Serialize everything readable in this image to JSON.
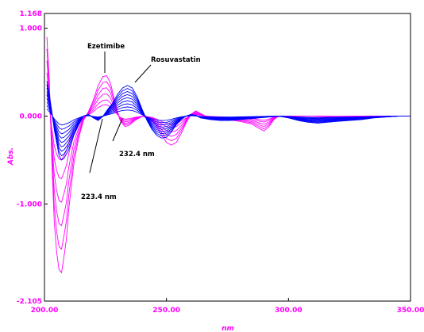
{
  "chart_data": {
    "type": "line",
    "xlabel": "nm",
    "ylabel": "Abs.",
    "xlim": [
      200.0,
      350.0
    ],
    "ylim": [
      -2.105,
      1.168
    ],
    "x_ticks": [
      "200.00",
      "250.00",
      "300.00",
      "350.00"
    ],
    "y_ticks": [
      {
        "value": 1.168,
        "label": "1.168"
      },
      {
        "value": 1.0,
        "label": "1.000"
      },
      {
        "value": 0.0,
        "label": "0.000"
      },
      {
        "value": -1.0,
        "label": "-1.000"
      },
      {
        "value": -2.105,
        "label": "-2.105"
      }
    ],
    "grid": false,
    "annotations": [
      {
        "text": "Ezetimibe",
        "x": 225.5,
        "y": 0.46
      },
      {
        "text": "Rosuvastatin",
        "x": 235.0,
        "y": 0.4
      },
      {
        "text": "232.4 nm",
        "x": 232.4,
        "y": 0.0
      },
      {
        "text": "223.4 nm",
        "x": 223.4,
        "y": 0.0
      }
    ],
    "series_groups": [
      {
        "color": "#ff00ff",
        "scales": [
          1.0,
          0.85,
          0.7,
          0.55,
          0.4,
          0.28
        ],
        "points": [
          [
            201,
            0.9
          ],
          [
            202,
            0.4
          ],
          [
            203,
            -0.5
          ],
          [
            204,
            -1.2
          ],
          [
            205,
            -1.55
          ],
          [
            206,
            -1.75
          ],
          [
            207,
            -1.78
          ],
          [
            208,
            -1.6
          ],
          [
            209,
            -1.4
          ],
          [
            210,
            -1.05
          ],
          [
            212,
            -0.55
          ],
          [
            214,
            -0.25
          ],
          [
            216,
            -0.05
          ],
          [
            218,
            0.05
          ],
          [
            220,
            0.18
          ],
          [
            222,
            0.35
          ],
          [
            224,
            0.45
          ],
          [
            225.5,
            0.46
          ],
          [
            227,
            0.38
          ],
          [
            229,
            0.15
          ],
          [
            231,
            -0.05
          ],
          [
            233,
            -0.12
          ],
          [
            235,
            -0.1
          ],
          [
            237,
            -0.05
          ],
          [
            239,
            -0.02
          ],
          [
            240,
            0.0
          ],
          [
            242,
            -0.02
          ],
          [
            244,
            -0.05
          ],
          [
            246,
            -0.12
          ],
          [
            248,
            -0.22
          ],
          [
            250,
            -0.3
          ],
          [
            252,
            -0.33
          ],
          [
            254,
            -0.3
          ],
          [
            256,
            -0.2
          ],
          [
            258,
            -0.08
          ],
          [
            260,
            0.02
          ],
          [
            262,
            0.06
          ],
          [
            264,
            0.03
          ],
          [
            266,
            0.0
          ],
          [
            270,
            -0.02
          ],
          [
            275,
            -0.04
          ],
          [
            280,
            -0.06
          ],
          [
            285,
            -0.09
          ],
          [
            288,
            -0.14
          ],
          [
            290,
            -0.17
          ],
          [
            292,
            -0.12
          ],
          [
            294,
            -0.04
          ],
          [
            296,
            0.0
          ],
          [
            300,
            0.0
          ],
          [
            310,
            0.0
          ],
          [
            320,
            -0.01
          ],
          [
            330,
            0.0
          ],
          [
            340,
            0.0
          ],
          [
            350,
            0.0
          ]
        ]
      },
      {
        "color": "#0000ff",
        "scales": [
          1.0,
          0.9,
          0.8,
          0.7,
          0.6,
          0.5,
          0.4,
          0.3,
          0.2
        ],
        "points": [
          [
            201,
            0.4
          ],
          [
            202,
            0.25
          ],
          [
            203,
            0.05
          ],
          [
            204,
            -0.15
          ],
          [
            205,
            -0.3
          ],
          [
            206,
            -0.45
          ],
          [
            207,
            -0.5
          ],
          [
            208,
            -0.48
          ],
          [
            210,
            -0.38
          ],
          [
            212,
            -0.22
          ],
          [
            214,
            -0.1
          ],
          [
            216,
            0.0
          ],
          [
            218,
            0.02
          ],
          [
            220,
            -0.02
          ],
          [
            222,
            -0.05
          ],
          [
            224,
            0.0
          ],
          [
            226,
            0.08
          ],
          [
            228,
            0.15
          ],
          [
            230,
            0.25
          ],
          [
            232,
            0.32
          ],
          [
            234,
            0.35
          ],
          [
            236,
            0.32
          ],
          [
            238,
            0.22
          ],
          [
            240,
            0.08
          ],
          [
            242,
            -0.05
          ],
          [
            244,
            -0.15
          ],
          [
            246,
            -0.22
          ],
          [
            248,
            -0.25
          ],
          [
            250,
            -0.24
          ],
          [
            252,
            -0.18
          ],
          [
            254,
            -0.1
          ],
          [
            256,
            -0.04
          ],
          [
            258,
            0.0
          ],
          [
            260,
            0.02
          ],
          [
            262,
            0.01
          ],
          [
            264,
            -0.02
          ],
          [
            268,
            -0.04
          ],
          [
            272,
            -0.05
          ],
          [
            276,
            -0.05
          ],
          [
            280,
            -0.04
          ],
          [
            284,
            -0.03
          ],
          [
            288,
            -0.02
          ],
          [
            292,
            -0.01
          ],
          [
            296,
            0.0
          ],
          [
            300,
            -0.02
          ],
          [
            304,
            -0.05
          ],
          [
            308,
            -0.07
          ],
          [
            312,
            -0.08
          ],
          [
            316,
            -0.07
          ],
          [
            320,
            -0.06
          ],
          [
            325,
            -0.05
          ],
          [
            330,
            -0.04
          ],
          [
            335,
            -0.02
          ],
          [
            340,
            -0.01
          ],
          [
            345,
            0.0
          ],
          [
            350,
            0.0
          ]
        ]
      }
    ]
  }
}
